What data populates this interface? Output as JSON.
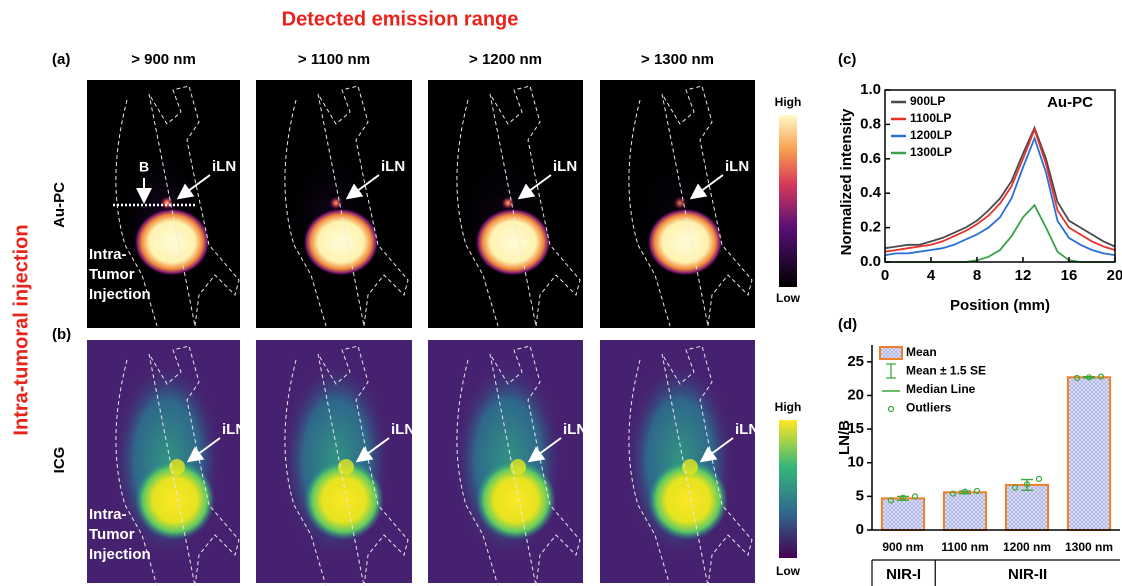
{
  "header": {
    "title": "Detected emission range"
  },
  "panels": {
    "a": "(a)",
    "b": "(b)",
    "c": "(c)",
    "d": "(d)"
  },
  "columns": [
    "> 900 nm",
    "> 1100 nm",
    "> 1200 nm",
    "> 1300 nm"
  ],
  "side_label": "Intra-tumoral injection",
  "rows": [
    "Au-PC",
    "ICG"
  ],
  "annotations": {
    "background": "B",
    "node": "iLN",
    "injection": [
      "Intra-",
      "Tumor",
      "Injection"
    ]
  },
  "colorbar": {
    "high": "High",
    "low": "Low"
  },
  "chart_data": [
    {
      "type": "line",
      "annotation": "Au-PC",
      "xlabel": "Position (mm)",
      "ylabel": "Normalized intensity",
      "x": [
        0,
        1,
        2,
        3,
        4,
        5,
        6,
        7,
        8,
        9,
        10,
        11,
        12,
        13,
        14,
        15,
        16,
        17,
        18,
        19,
        20
      ],
      "xlim": [
        0,
        20
      ],
      "xticks": [
        0,
        4,
        8,
        12,
        16,
        20
      ],
      "ylim": [
        0,
        1.0
      ],
      "yticks": [
        {
          "value": 0,
          "label": "0.0"
        },
        0.2,
        0.4,
        0.6,
        0.8,
        {
          "value": 1,
          "label": "1.0"
        }
      ],
      "series": [
        {
          "name": "900LP",
          "color": "#4a4a4a",
          "values": [
            0.08,
            0.09,
            0.1,
            0.1,
            0.12,
            0.14,
            0.17,
            0.2,
            0.24,
            0.3,
            0.37,
            0.47,
            0.63,
            0.78,
            0.6,
            0.35,
            0.24,
            0.2,
            0.16,
            0.12,
            0.09
          ]
        },
        {
          "name": "1100LP",
          "color": "#e8322c",
          "values": [
            0.06,
            0.07,
            0.08,
            0.09,
            0.1,
            0.12,
            0.15,
            0.18,
            0.22,
            0.27,
            0.34,
            0.44,
            0.6,
            0.77,
            0.57,
            0.3,
            0.2,
            0.16,
            0.12,
            0.09,
            0.07
          ]
        },
        {
          "name": "1200LP",
          "color": "#2a6fd6",
          "values": [
            0.04,
            0.05,
            0.05,
            0.06,
            0.07,
            0.08,
            0.1,
            0.13,
            0.16,
            0.2,
            0.26,
            0.37,
            0.55,
            0.72,
            0.52,
            0.24,
            0.14,
            0.1,
            0.07,
            0.05,
            0.04
          ]
        },
        {
          "name": "1300LP",
          "color": "#3aa04a",
          "values": [
            0,
            0,
            0,
            0,
            0,
            0,
            0,
            0,
            0.01,
            0.03,
            0.07,
            0.15,
            0.26,
            0.33,
            0.2,
            0.06,
            0.01,
            0,
            0,
            0,
            0
          ]
        }
      ]
    },
    {
      "type": "bar",
      "ylabel": "LN/B",
      "categories": [
        "900 nm",
        "1100 nm",
        "1200 nm",
        "1300 nm"
      ],
      "values": [
        4.7,
        5.6,
        6.7,
        22.7
      ],
      "errors": [
        0.3,
        0.2,
        0.8,
        0.1
      ],
      "points": [
        [
          4.4,
          4.8,
          5.0
        ],
        [
          5.4,
          5.7,
          5.8
        ],
        [
          6.3,
          6.8,
          7.6
        ],
        [
          22.6,
          22.7,
          22.8
        ]
      ],
      "color": "#c8cdf0",
      "edge_color": "#f07f2a",
      "point_color": "#3aa83a",
      "ylim": [
        0,
        27.5
      ],
      "yticks": [
        0,
        5,
        10,
        15,
        20,
        25
      ],
      "legend": [
        "Mean",
        "Mean ± 1.5 SE",
        "Median Line",
        "Outliers"
      ],
      "groups": [
        "NIR-I",
        "NIR-II"
      ]
    }
  ]
}
